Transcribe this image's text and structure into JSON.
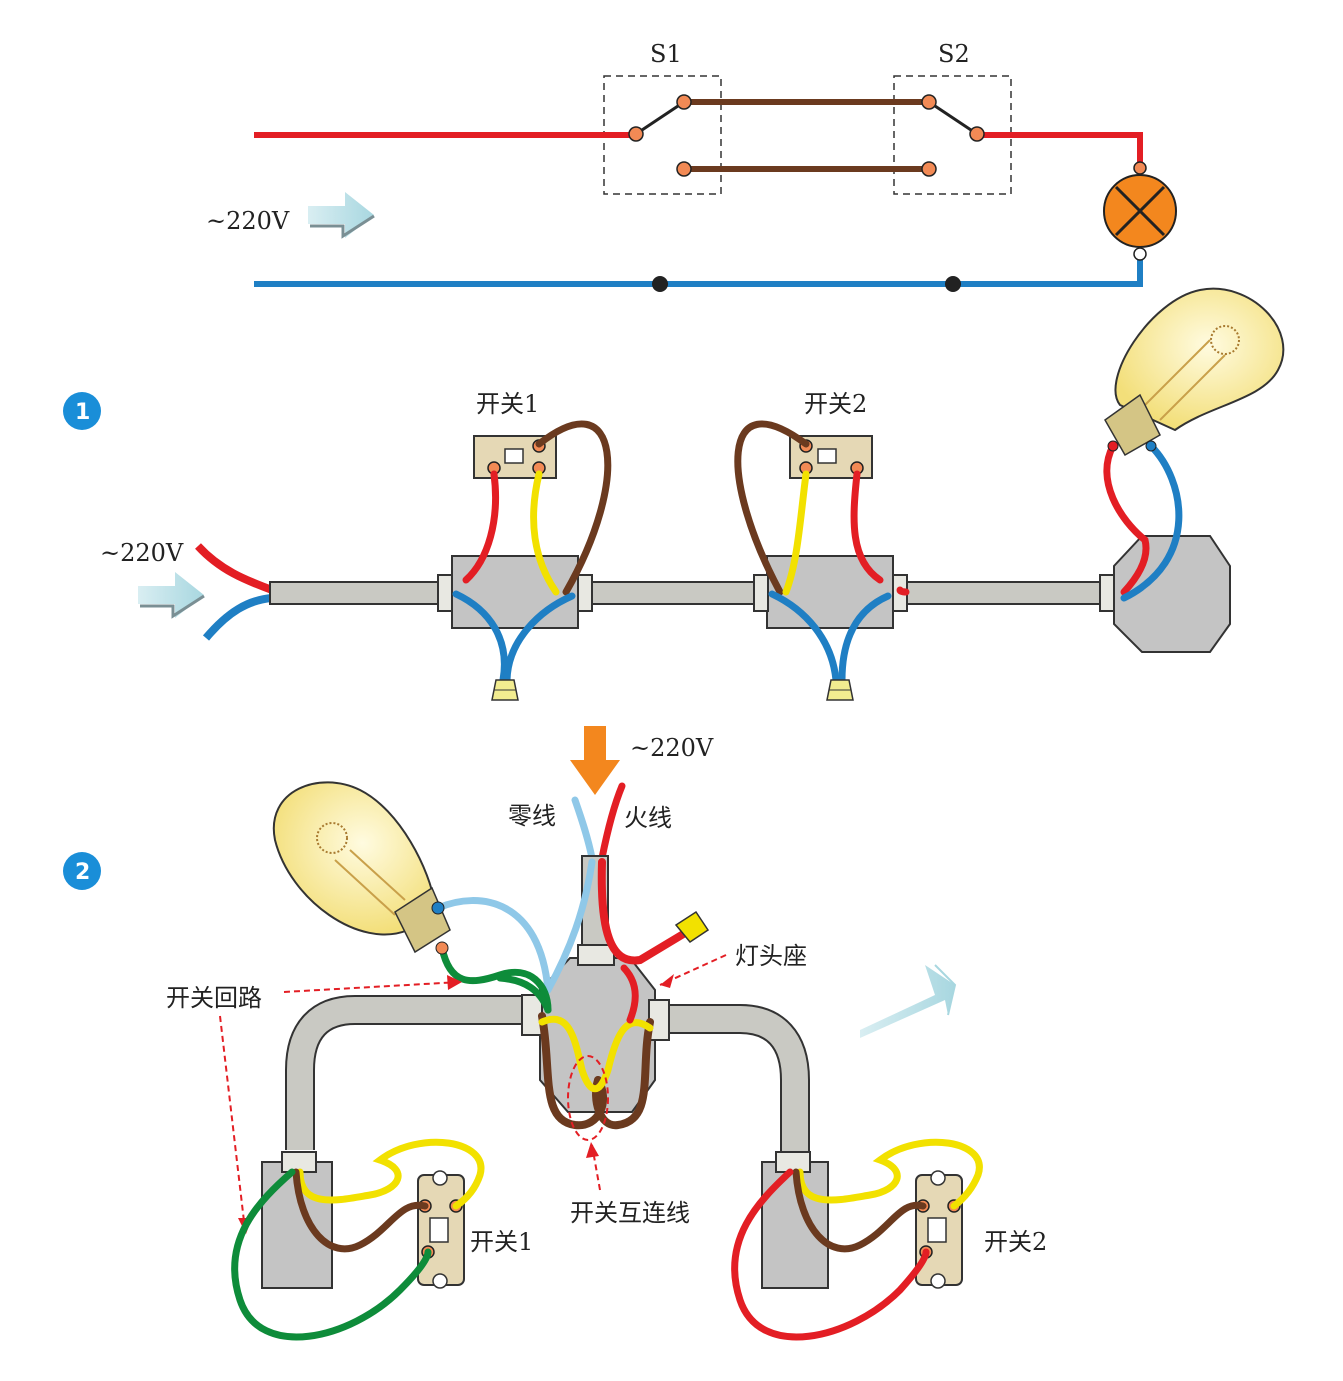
{
  "schematic": {
    "switch1_label": "S1",
    "switch2_label": "S2",
    "voltage_label": "~220V"
  },
  "diagram1": {
    "badge": "1",
    "voltage_label": "~220V",
    "switch1_label": "开关1",
    "switch2_label": "开关2"
  },
  "diagram2": {
    "badge": "2",
    "voltage_label": "~220V",
    "neutral_label": "零线",
    "live_label": "火线",
    "lamp_holder_label": "灯头座",
    "switch_loop_label": "开关回路",
    "interconnect_label": "开关互连线",
    "switch1_label": "开关1",
    "switch2_label": "开关2"
  },
  "colors": {
    "live": "#e31e24",
    "neutral": "#1f7fc4",
    "traveler": "#6b3a1f",
    "yellow": "#f2e100",
    "green": "#0e8c3a",
    "light_blue": "#8fc8e8",
    "conduit": "#c9c9c3",
    "lamp": "#f3871e",
    "badge": "#1a8ed8"
  }
}
